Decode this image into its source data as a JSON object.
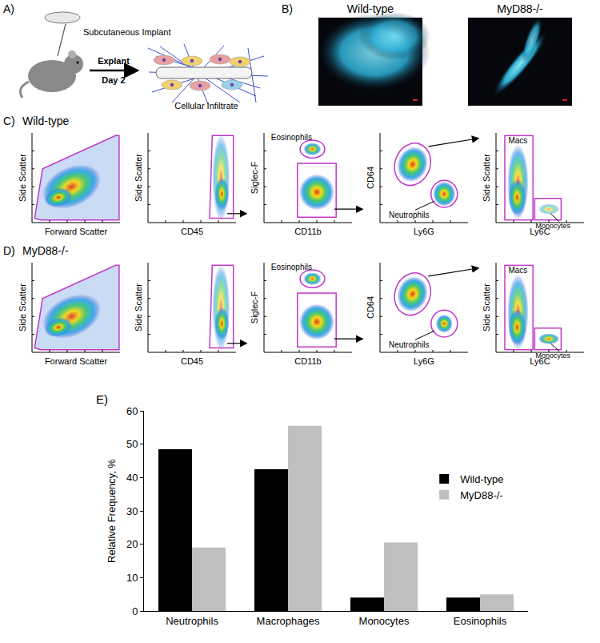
{
  "panels": {
    "A": {
      "label": "A)",
      "implant": "Subcutaneous Implant",
      "step": "Explant",
      "time": "Day 2",
      "result": "Cellular Infiltrate"
    },
    "B": {
      "label": "B)",
      "images": [
        "Wild-type",
        "MyD88-/-"
      ]
    },
    "C": {
      "label": "C)",
      "genotype": "Wild-type"
    },
    "D": {
      "label": "D)",
      "genotype": "MyD88-/-"
    },
    "flow_plots": [
      {
        "x": "Forward Scatter",
        "y": "Side Scatter",
        "gates": []
      },
      {
        "x": "CD45",
        "y": "Side Scatter",
        "gates": []
      },
      {
        "x": "CD11b",
        "y": "Siglec-F",
        "gates": [
          "Eosinophils"
        ]
      },
      {
        "x": "Ly6G",
        "y": "CD64",
        "gates": [
          "Neutrophils"
        ]
      },
      {
        "x": "Ly6C",
        "y": "Side Scatter",
        "gates": [
          "Macs",
          "Monocytes"
        ]
      }
    ],
    "E": {
      "label": "E)"
    }
  },
  "chart_data": {
    "type": "bar",
    "categories": [
      "Neutrophils",
      "Macrophages",
      "Monocytes",
      "Eosinophils"
    ],
    "series": [
      {
        "name": "Wild-type",
        "color": "#000000",
        "values": [
          48.5,
          42.5,
          4,
          4
        ]
      },
      {
        "name": "MyD88-/-",
        "color": "#bfbfbf",
        "values": [
          19,
          55.5,
          20.5,
          5
        ]
      }
    ],
    "y_label": "Relative Frequency, %",
    "ylim": [
      0,
      60
    ],
    "yticks": [
      0,
      10,
      20,
      30,
      40,
      50,
      60
    ],
    "grid": false,
    "legend": "right"
  }
}
